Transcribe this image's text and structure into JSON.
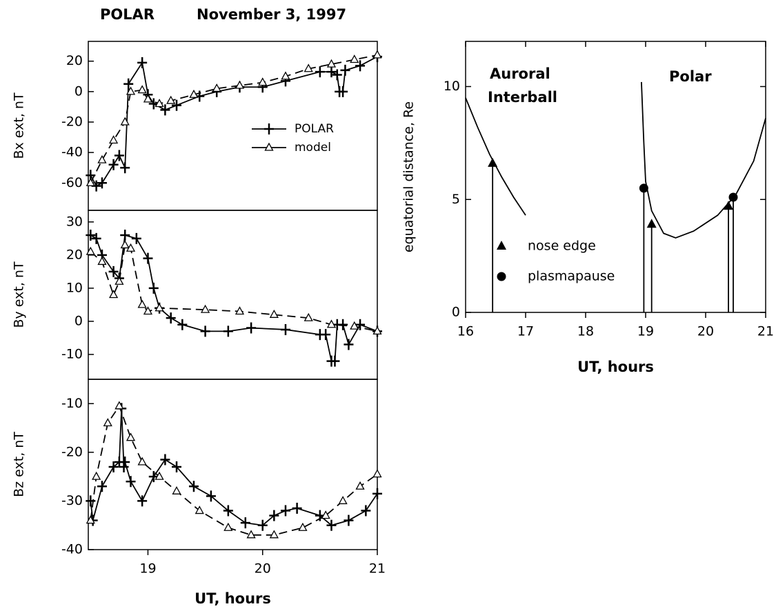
{
  "chart_data": [
    {
      "type": "line",
      "title": "POLAR",
      "subtitle": "November 3, 1997",
      "y_label": "Bx ext, nT",
      "xlim": [
        18.48,
        21
      ],
      "ylim": [
        -78,
        33
      ],
      "yticks": [
        20,
        0,
        -20,
        -40,
        -60
      ],
      "legend": true,
      "series": [
        {
          "name": "POLAR",
          "color": "#000000",
          "dash": false,
          "marker": "plus",
          "x": [
            18.5,
            18.55,
            18.6,
            18.7,
            18.75,
            18.8,
            18.83,
            18.95,
            19.0,
            19.05,
            19.15,
            19.25,
            19.45,
            19.6,
            19.8,
            20.0,
            20.2,
            20.5,
            20.6,
            20.65,
            20.67,
            20.7,
            20.72,
            20.85,
            21.0
          ],
          "values": [
            -55,
            -62,
            -60,
            -48,
            -42,
            -50,
            5,
            19,
            -2,
            -8,
            -12,
            -9,
            -3,
            0,
            3,
            3,
            7,
            13,
            13,
            11,
            0,
            0,
            14,
            17,
            23
          ]
        },
        {
          "name": "model",
          "color": "#000000",
          "dash": true,
          "marker": "triangle-open",
          "x": [
            18.5,
            18.6,
            18.7,
            18.8,
            18.85,
            18.95,
            19.0,
            19.1,
            19.2,
            19.4,
            19.6,
            19.8,
            20.0,
            20.2,
            20.4,
            20.6,
            20.8,
            21.0
          ],
          "values": [
            -60,
            -45,
            -32,
            -20,
            0,
            1,
            -5,
            -8,
            -6,
            -2,
            2,
            4,
            6,
            10,
            15,
            18,
            21,
            24
          ]
        }
      ]
    },
    {
      "type": "line",
      "y_label": "By ext, nT",
      "xlim": [
        18.48,
        21
      ],
      "ylim": [
        -17.5,
        33.5
      ],
      "yticks": [
        30,
        20,
        10,
        0,
        -10
      ],
      "series": [
        {
          "color": "#000000",
          "dash": false,
          "marker": "plus",
          "x": [
            18.5,
            18.55,
            18.6,
            18.7,
            18.75,
            18.8,
            18.9,
            19.0,
            19.05,
            19.1,
            19.2,
            19.3,
            19.5,
            19.7,
            19.9,
            20.2,
            20.5,
            20.55,
            20.6,
            20.63,
            20.65,
            20.7,
            20.75,
            20.85,
            21.0
          ],
          "values": [
            26,
            25,
            20,
            15,
            13,
            26,
            25,
            19,
            10,
            4,
            1,
            -1,
            -3,
            -3,
            -2,
            -2.5,
            -4,
            -4,
            -12,
            -12,
            -1,
            -1,
            -7,
            -1,
            -3
          ]
        },
        {
          "color": "#000000",
          "dash": true,
          "marker": "triangle-open",
          "x": [
            18.5,
            18.6,
            18.7,
            18.75,
            18.8,
            18.85,
            18.95,
            19.0,
            19.1,
            19.5,
            19.8,
            20.1,
            20.4,
            20.6,
            20.8,
            21.0
          ],
          "values": [
            21,
            18,
            8,
            12,
            23,
            22,
            5,
            3,
            4,
            3.5,
            3,
            2,
            1,
            -1,
            -1.5,
            -3
          ]
        }
      ]
    },
    {
      "type": "line",
      "y_label": "Bz ext, nT",
      "x_label": "UT, hours",
      "xlim": [
        18.48,
        21
      ],
      "ylim": [
        -40,
        -5
      ],
      "yticks": [
        -10,
        -20,
        -30,
        -40
      ],
      "xticks": [
        19,
        20,
        21
      ],
      "series": [
        {
          "color": "#000000",
          "dash": false,
          "marker": "plus",
          "x": [
            18.5,
            18.52,
            18.6,
            18.7,
            18.75,
            18.77,
            18.79,
            18.8,
            18.85,
            18.95,
            19.05,
            19.15,
            19.25,
            19.4,
            19.55,
            19.7,
            19.85,
            20.0,
            20.1,
            20.2,
            20.3,
            20.5,
            20.6,
            20.75,
            20.9,
            21.0
          ],
          "values": [
            -30,
            -34,
            -27,
            -23,
            -22,
            -11,
            -23,
            -22,
            -26,
            -30,
            -25,
            -21.5,
            -23,
            -27,
            -29,
            -32,
            -34.5,
            -35,
            -33,
            -32,
            -31.5,
            -33,
            -35,
            -34,
            -32,
            -28.5
          ]
        },
        {
          "color": "#000000",
          "dash": true,
          "marker": "triangle-open",
          "x": [
            18.5,
            18.55,
            18.65,
            18.75,
            18.85,
            18.95,
            19.1,
            19.25,
            19.45,
            19.7,
            19.9,
            20.1,
            20.35,
            20.55,
            20.7,
            20.85,
            21.0
          ],
          "values": [
            -34,
            -25,
            -14,
            -10.5,
            -17,
            -22,
            -25,
            -28,
            -32,
            -35.5,
            -37,
            -37,
            -35.5,
            -33,
            -30,
            -27,
            -24.5
          ]
        }
      ]
    },
    {
      "type": "line",
      "y_label": "equatorial distance, Re",
      "x_label": "UT, hours",
      "xlim": [
        16,
        21
      ],
      "ylim": [
        0,
        12
      ],
      "xticks": [
        16,
        17,
        18,
        19,
        20,
        21
      ],
      "yticks": [
        0,
        5,
        10
      ],
      "mirror_ticks": true,
      "annotations": [
        "Auroral",
        "Interball",
        "Polar"
      ],
      "series": [
        {
          "color": "#000000",
          "dash": false,
          "x": [
            16.0,
            16.2,
            16.4,
            16.6,
            16.8,
            17.0
          ],
          "values": [
            9.5,
            8.2,
            7.0,
            6.0,
            5.1,
            4.3
          ]
        },
        {
          "color": "#000000",
          "dash": false,
          "x": [
            18.93,
            18.97,
            19.0,
            19.1,
            19.3,
            19.5,
            19.8,
            20.2,
            20.5,
            20.8,
            21.0
          ],
          "values": [
            10.2,
            7.5,
            5.8,
            4.5,
            3.5,
            3.3,
            3.6,
            4.3,
            5.2,
            6.7,
            8.6
          ]
        }
      ],
      "points": [
        {
          "name": "nose edge",
          "marker": "triangle",
          "color": "#000000",
          "x": [
            16.45,
            19.1,
            20.38
          ],
          "values": [
            6.6,
            3.9,
            4.7
          ]
        },
        {
          "name": "plasmapause",
          "marker": "circle",
          "color": "#000000",
          "x": [
            18.97,
            20.46
          ],
          "values": [
            5.5,
            5.1
          ]
        }
      ]
    }
  ]
}
